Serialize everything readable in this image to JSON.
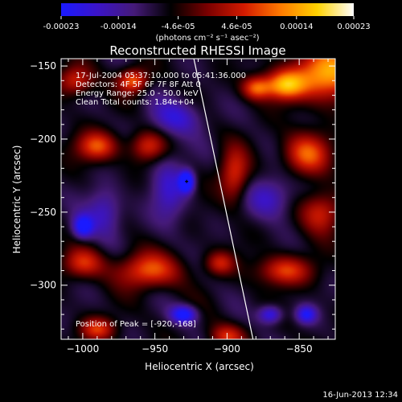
{
  "chart_data": {
    "type": "heatmap",
    "title": "Reconstructed RHESSI Image",
    "xlabel": "Heliocentric X (arcsec)",
    "ylabel": "Heliocentric Y (arcsec)",
    "xlim": [
      -1015,
      -825
    ],
    "ylim": [
      -337,
      -145
    ],
    "x_ticks": [
      -1000,
      -950,
      -900,
      -850
    ],
    "y_ticks": [
      -150,
      -200,
      -250,
      -300
    ],
    "colorbar": {
      "min": -0.00023,
      "max": 0.00023,
      "tick_values": [
        -0.00023,
        -0.00014,
        -4.6e-05,
        4.6e-05,
        0.00014,
        0.00023
      ],
      "tick_labels": [
        "-0.00023",
        "-0.00014",
        "-4.6e-05",
        "4.6e-05",
        "0.00014",
        "0.00023"
      ],
      "unit_label": "(photons cm⁻² s⁻¹ asec⁻²)",
      "colors": [
        "#1a1aff",
        "#3b14c8",
        "#451a78",
        "#000000",
        "#7a0000",
        "#d21a00",
        "#ff7a00",
        "#ffd200",
        "#ffffff"
      ]
    },
    "annotations": [
      "17-Jul-2004 05:37:10.000 to 05:41:36.000",
      "Detectors: 4F 5F 6F 7F 8F  Att 0",
      "Energy Range: 25.0 - 50.0 keV",
      "Clean     Total counts: 1.84e+04"
    ],
    "peak": {
      "label": "Position of Peak = [-920,-168]",
      "x": -920,
      "y": -168
    },
    "peak_marker": {
      "x": -928,
      "y": -229
    },
    "limb_line": [
      [
        -923,
        -145
      ],
      [
        -882,
        -337
      ]
    ],
    "features": [
      {
        "x": -830,
        "y": -155,
        "w": 22,
        "h": 18,
        "v": 1.0
      },
      {
        "x": -860,
        "y": -163,
        "w": 14,
        "h": 10,
        "v": 0.9
      },
      {
        "x": -880,
        "y": -165,
        "w": 10,
        "h": 8,
        "v": 0.7
      },
      {
        "x": -965,
        "y": -160,
        "w": 10,
        "h": 8,
        "v": 0.75
      },
      {
        "x": -1005,
        "y": -160,
        "w": 12,
        "h": 10,
        "v": 0.6
      },
      {
        "x": -990,
        "y": -205,
        "w": 14,
        "h": 10,
        "v": 0.7
      },
      {
        "x": -955,
        "y": -205,
        "w": 12,
        "h": 10,
        "v": 0.55
      },
      {
        "x": -845,
        "y": -210,
        "w": 16,
        "h": 14,
        "v": 0.7
      },
      {
        "x": -895,
        "y": -225,
        "w": 10,
        "h": 18,
        "v": 0.6
      },
      {
        "x": -835,
        "y": -250,
        "w": 14,
        "h": 14,
        "v": 0.6
      },
      {
        "x": -860,
        "y": -290,
        "w": 18,
        "h": 10,
        "v": 0.65
      },
      {
        "x": -955,
        "y": -290,
        "w": 22,
        "h": 12,
        "v": 0.7
      },
      {
        "x": -1000,
        "y": -285,
        "w": 14,
        "h": 10,
        "v": 0.55
      },
      {
        "x": -905,
        "y": -285,
        "w": 10,
        "h": 8,
        "v": 0.5
      },
      {
        "x": -990,
        "y": -330,
        "w": 12,
        "h": 8,
        "v": 0.6
      },
      {
        "x": -900,
        "y": -335,
        "w": 12,
        "h": 8,
        "v": 0.55
      },
      {
        "x": -940,
        "y": -235,
        "w": 12,
        "h": 24,
        "v": -0.4
      },
      {
        "x": -928,
        "y": -229,
        "w": 5,
        "h": 7,
        "v": -1.0
      },
      {
        "x": -1000,
        "y": -260,
        "w": 7,
        "h": 8,
        "v": -0.75
      },
      {
        "x": -930,
        "y": -320,
        "w": 9,
        "h": 6,
        "v": -0.75
      },
      {
        "x": -985,
        "y": -250,
        "w": 12,
        "h": 16,
        "v": -0.45
      },
      {
        "x": -870,
        "y": -240,
        "w": 16,
        "h": 14,
        "v": -0.45
      },
      {
        "x": -935,
        "y": -185,
        "w": 18,
        "h": 12,
        "v": -0.45
      },
      {
        "x": -870,
        "y": -320,
        "w": 8,
        "h": 6,
        "v": -0.6
      },
      {
        "x": -845,
        "y": -320,
        "w": 7,
        "h": 6,
        "v": -0.6
      }
    ]
  },
  "footer": {
    "date": "16-Jun-2013 12:34"
  }
}
